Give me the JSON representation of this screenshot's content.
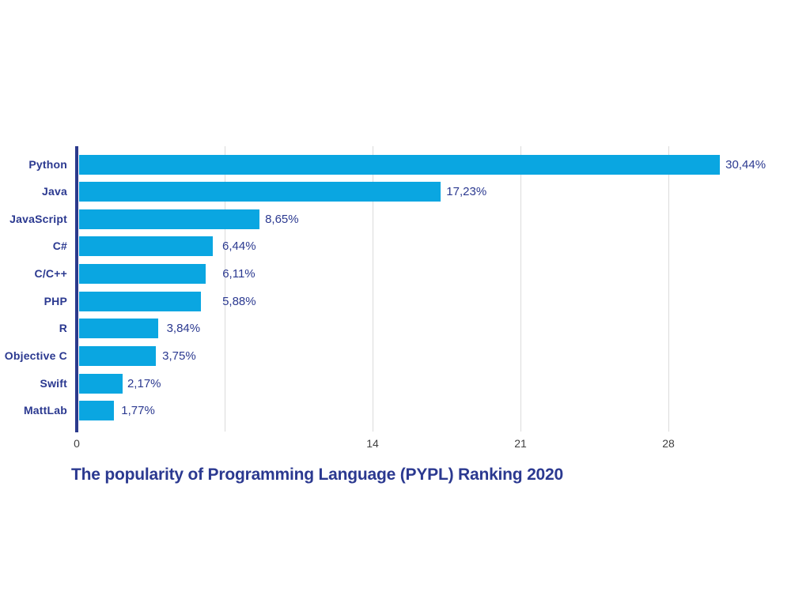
{
  "chart_data": {
    "type": "bar",
    "orientation": "horizontal",
    "title": "The popularity of Programming Language (PYPL) Ranking 2020",
    "categories": [
      "Python",
      "Java",
      "JavaScript",
      "C#",
      "C/C++",
      "PHP",
      "R",
      "Objective C",
      "Swift",
      "MattLab"
    ],
    "values": [
      30.44,
      17.23,
      8.65,
      6.44,
      6.11,
      5.88,
      3.84,
      3.75,
      2.17,
      1.77
    ],
    "value_labels": [
      "30,44%",
      "17,23%",
      "8,65%",
      "6,44%",
      "6,11%",
      "5,88%",
      "3,84%",
      "3,75%",
      "2,17%",
      "1,77%"
    ],
    "xlabel": "",
    "ylabel": "",
    "x_axis": {
      "range": [
        0,
        28
      ],
      "tick_labels": [
        "0",
        "14",
        "21",
        "28"
      ],
      "tick_values": [
        0,
        14,
        21,
        28
      ],
      "gridline_values": [
        7,
        14,
        21,
        28
      ],
      "grid": "on"
    },
    "legend": "none",
    "colors": {
      "bar": "#0aa6e1",
      "axis_line": "#2b3a8c",
      "text_navy": "#2b3990",
      "tick_text": "#3f3f3f",
      "gridline": "#dbdbdb",
      "background": "#ffffff"
    }
  }
}
